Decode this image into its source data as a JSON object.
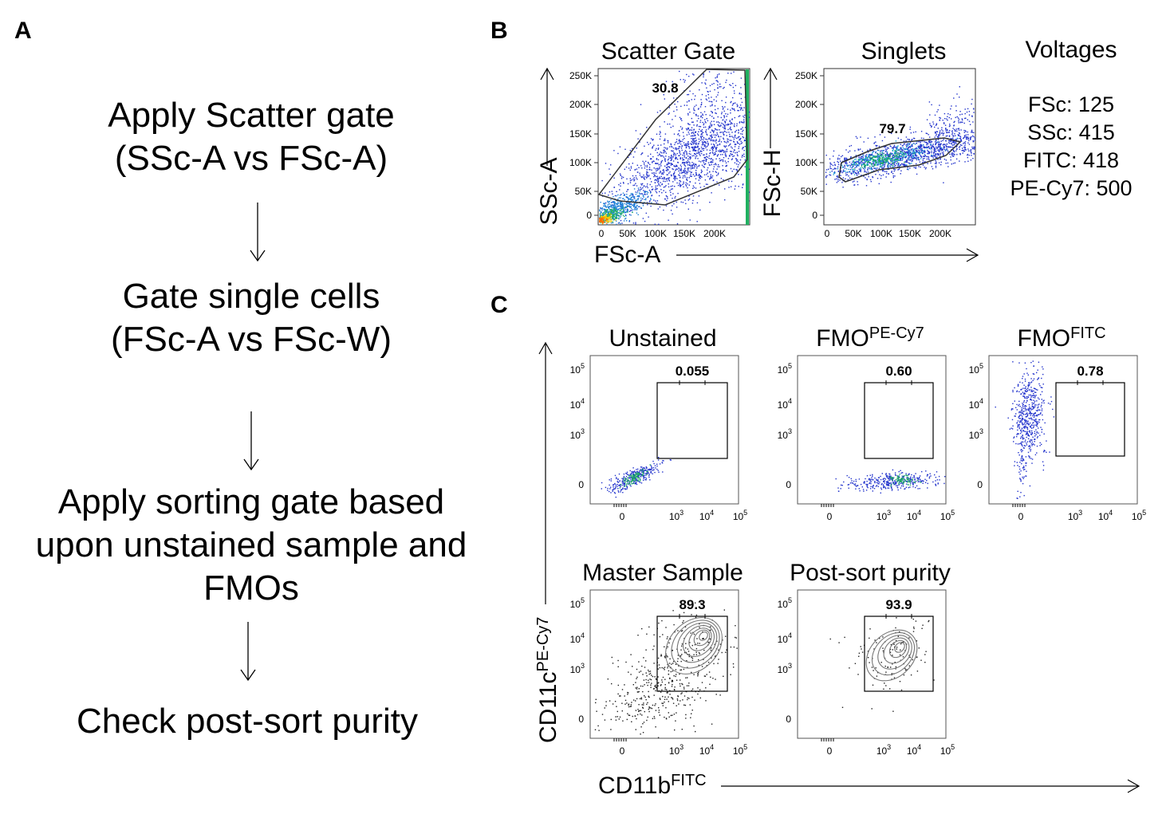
{
  "panel_labels": {
    "a": "A",
    "b": "B",
    "c": "C"
  },
  "workflow": {
    "steps": [
      [
        "Apply Scatter gate",
        "(SSc-A vs FSc-A)"
      ],
      [
        "Gate single cells",
        "(FSc-A vs FSc-W)"
      ],
      [
        "Apply sorting gate based",
        "upon unstained sample and",
        "FMOs"
      ],
      [
        "Check post-sort purity"
      ]
    ]
  },
  "panel_b": {
    "scatter": {
      "title": "Scatter Gate",
      "gate_value": "30.8",
      "y_ticks": [
        "250K",
        "200K",
        "150K",
        "100K",
        "50K",
        "0"
      ],
      "x_ticks": [
        "0",
        "50K",
        "100K",
        "150K",
        "200K"
      ],
      "y_axis": "SSc-A",
      "x_axis": "FSc-A"
    },
    "singlets": {
      "title": "Singlets",
      "gate_value": "79.7",
      "y_ticks": [
        "250K",
        "200K",
        "150K",
        "100K",
        "50K",
        "0"
      ],
      "x_ticks": [
        "0",
        "50K",
        "100K",
        "150K",
        "200K"
      ],
      "y_axis": "FSc-H"
    },
    "voltages": {
      "title": "Voltages",
      "lines": [
        "FSc: 125",
        "SSc: 415",
        "FITC: 418",
        "PE-Cy7: 500"
      ]
    }
  },
  "panel_c": {
    "plots": [
      {
        "title": "Unstained",
        "title_sup": "",
        "gate_value": "0.055",
        "style": "dots"
      },
      {
        "title": "FMO",
        "title_sup": "PE-Cy7",
        "gate_value": "0.60",
        "style": "dots"
      },
      {
        "title": "FMO",
        "title_sup": "FITC",
        "gate_value": "0.78",
        "style": "dots"
      },
      {
        "title": "Master Sample",
        "title_sup": "",
        "gate_value": "89.3",
        "style": "contour"
      },
      {
        "title": "Post-sort purity",
        "title_sup": "",
        "gate_value": "93.9",
        "style": "contour"
      }
    ],
    "log_ticks": {
      "base": "10",
      "exps": [
        "5",
        "4",
        "3"
      ],
      "zero": "0"
    },
    "y_axis": {
      "main": "CD11c",
      "sup": "PE-Cy7"
    },
    "x_axis": {
      "main": "CD11b",
      "sup": "FITC"
    }
  }
}
